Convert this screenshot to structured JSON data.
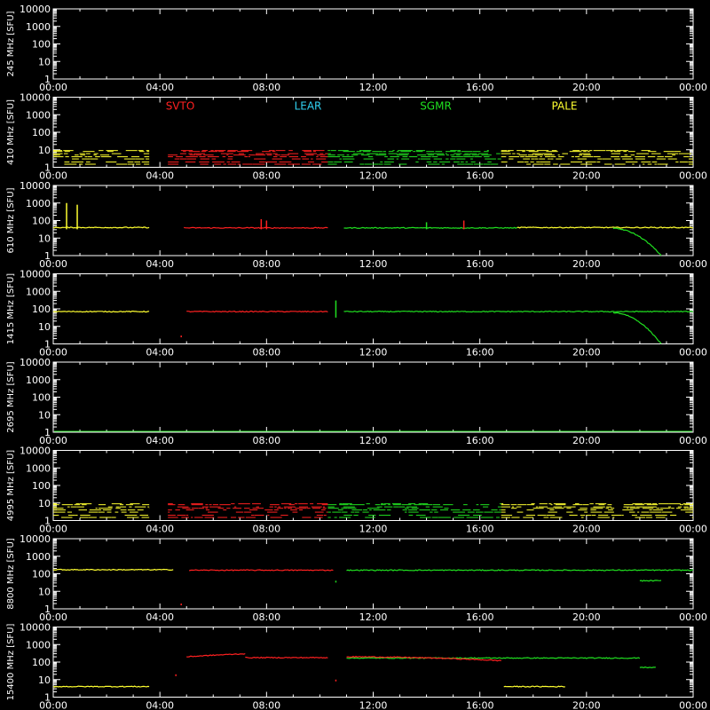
{
  "chart_data": {
    "type": "scatter",
    "unit_label": "[SFU]",
    "x_ticks": [
      "00:00",
      "04:00",
      "08:00",
      "12:00",
      "16:00",
      "20:00",
      "00:00"
    ],
    "y_ticks": [
      "1",
      "10",
      "100",
      "1000",
      "10000"
    ],
    "xlim_hours": [
      0,
      24
    ],
    "ylim": [
      1,
      10000
    ],
    "y_scale": "log",
    "grid": false,
    "legend_placement": "top, second panel",
    "stations": [
      {
        "name": "SVTO",
        "color": "#ff2020"
      },
      {
        "name": "LEAR",
        "color": "#30d0f0"
      },
      {
        "name": "SGMR",
        "color": "#20e020"
      },
      {
        "name": "PALE",
        "color": "#ffff30"
      }
    ],
    "panels": [
      {
        "freq_label": "245 MHz",
        "mode": "empty"
      },
      {
        "freq_label": "410 MHz",
        "mode": "noise",
        "level": 5
      },
      {
        "freq_label": "610 MHz",
        "mode": "level",
        "segments": [
          {
            "station": "PALE",
            "from": 0.0,
            "to": 3.6,
            "value": 40
          },
          {
            "station": "SVTO",
            "from": 4.9,
            "to": 10.3,
            "value": 38
          },
          {
            "station": "SGMR",
            "from": 10.9,
            "to": 17.4,
            "value": 38
          },
          {
            "station": "PALE",
            "from": 17.4,
            "to": 24.0,
            "value": 40
          },
          {
            "station": "SGMR",
            "from": 21.0,
            "to": 22.8,
            "value": 35,
            "decay_to": 1
          }
        ],
        "spikes": [
          {
            "station": "PALE",
            "at": 0.5,
            "value": 1000
          },
          {
            "station": "PALE",
            "at": 0.9,
            "value": 800
          },
          {
            "station": "SVTO",
            "at": 7.8,
            "value": 120
          },
          {
            "station": "SVTO",
            "at": 8.0,
            "value": 100
          },
          {
            "station": "SGMR",
            "at": 14.0,
            "value": 80
          },
          {
            "station": "SVTO",
            "at": 15.4,
            "value": 100
          }
        ]
      },
      {
        "freq_label": "1415 MHz",
        "mode": "level",
        "segments": [
          {
            "station": "PALE",
            "from": 0.0,
            "to": 3.6,
            "value": 70
          },
          {
            "station": "SVTO",
            "from": 5.0,
            "to": 10.3,
            "value": 70
          },
          {
            "station": "SGMR",
            "from": 10.9,
            "to": 24.0,
            "value": 70
          },
          {
            "station": "SGMR",
            "from": 21.0,
            "to": 22.8,
            "value": 60,
            "decay_to": 1
          }
        ],
        "spikes": [
          {
            "station": "SGMR",
            "at": 10.6,
            "value": 300
          },
          {
            "station": "SVTO",
            "at": 4.8,
            "value": 3
          }
        ]
      },
      {
        "freq_label": "2695 MHz",
        "mode": "baseline"
      },
      {
        "freq_label": "4995 MHz",
        "mode": "noise",
        "level": 5
      },
      {
        "freq_label": "8800 MHz",
        "mode": "level",
        "segments": [
          {
            "station": "PALE",
            "from": 0.0,
            "to": 4.5,
            "value": 170
          },
          {
            "station": "SVTO",
            "from": 5.1,
            "to": 10.5,
            "value": 160
          },
          {
            "station": "SGMR",
            "from": 11.0,
            "to": 24.0,
            "value": 160
          },
          {
            "station": "SGMR",
            "from": 22.0,
            "to": 22.8,
            "value": 40
          }
        ],
        "spikes": [
          {
            "station": "SGMR",
            "at": 10.6,
            "value": 40
          },
          {
            "station": "SVTO",
            "at": 4.8,
            "value": 2
          }
        ]
      },
      {
        "freq_label": "15400 MHz",
        "mode": "level",
        "segments": [
          {
            "station": "PALE",
            "from": 0.0,
            "to": 3.6,
            "value": 4
          },
          {
            "station": "SVTO",
            "from": 5.0,
            "to": 7.2,
            "value": 200,
            "rise_to": 300
          },
          {
            "station": "SVTO",
            "from": 7.2,
            "to": 10.3,
            "value": 180
          },
          {
            "station": "SGMR",
            "from": 11.0,
            "to": 22.0,
            "value": 170
          },
          {
            "station": "SVTO",
            "from": 11.0,
            "to": 16.8,
            "value": 200,
            "decay_to": 120
          },
          {
            "station": "PALE",
            "from": 16.9,
            "to": 19.2,
            "value": 4
          },
          {
            "station": "SGMR",
            "from": 22.0,
            "to": 22.6,
            "value": 50
          }
        ],
        "spikes": [
          {
            "station": "SVTO",
            "at": 4.6,
            "value": 20
          },
          {
            "station": "SVTO",
            "at": 10.6,
            "value": 10
          }
        ]
      }
    ]
  }
}
